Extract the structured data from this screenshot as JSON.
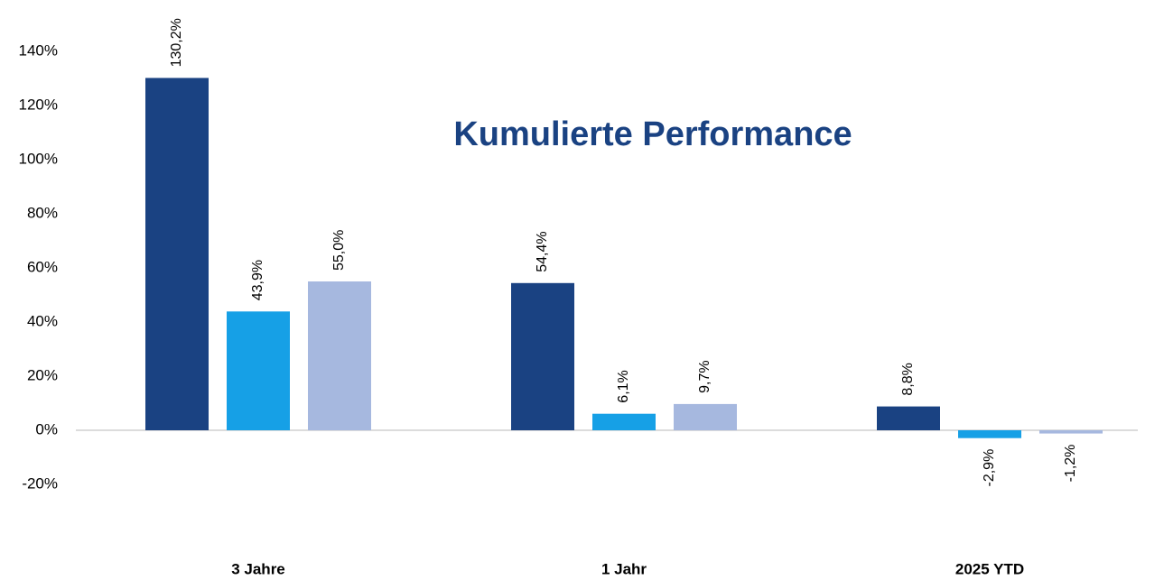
{
  "chart_data": {
    "type": "bar",
    "title": "Kumulierte Performance",
    "categories": [
      "3 Jahre",
      "1 Jahr",
      "2025 YTD"
    ],
    "series": [
      {
        "color": "#1a4282",
        "values": [
          130.2,
          54.4,
          8.8
        ],
        "value_labels": [
          "130,2%",
          "54,4%",
          "8,8%"
        ]
      },
      {
        "color": "#16a0e6",
        "values": [
          43.9,
          6.1,
          -2.9
        ],
        "value_labels": [
          "43,9%",
          "6,1%",
          "-2,9%"
        ]
      },
      {
        "color": "#a6b8df",
        "values": [
          55.0,
          9.7,
          -1.2
        ],
        "value_labels": [
          "55,0%",
          "9,7%",
          "-1,2%"
        ]
      }
    ],
    "ylim": [
      -20,
      140
    ],
    "yticks": [
      {
        "value": -20,
        "label": "-20%"
      },
      {
        "value": 0,
        "label": "0%"
      },
      {
        "value": 20,
        "label": "20%"
      },
      {
        "value": 40,
        "label": "40%"
      },
      {
        "value": 60,
        "label": "60%"
      },
      {
        "value": 80,
        "label": "80%"
      },
      {
        "value": 100,
        "label": "100%"
      },
      {
        "value": 120,
        "label": "120%"
      },
      {
        "value": 140,
        "label": "140%"
      }
    ],
    "grid": false
  }
}
